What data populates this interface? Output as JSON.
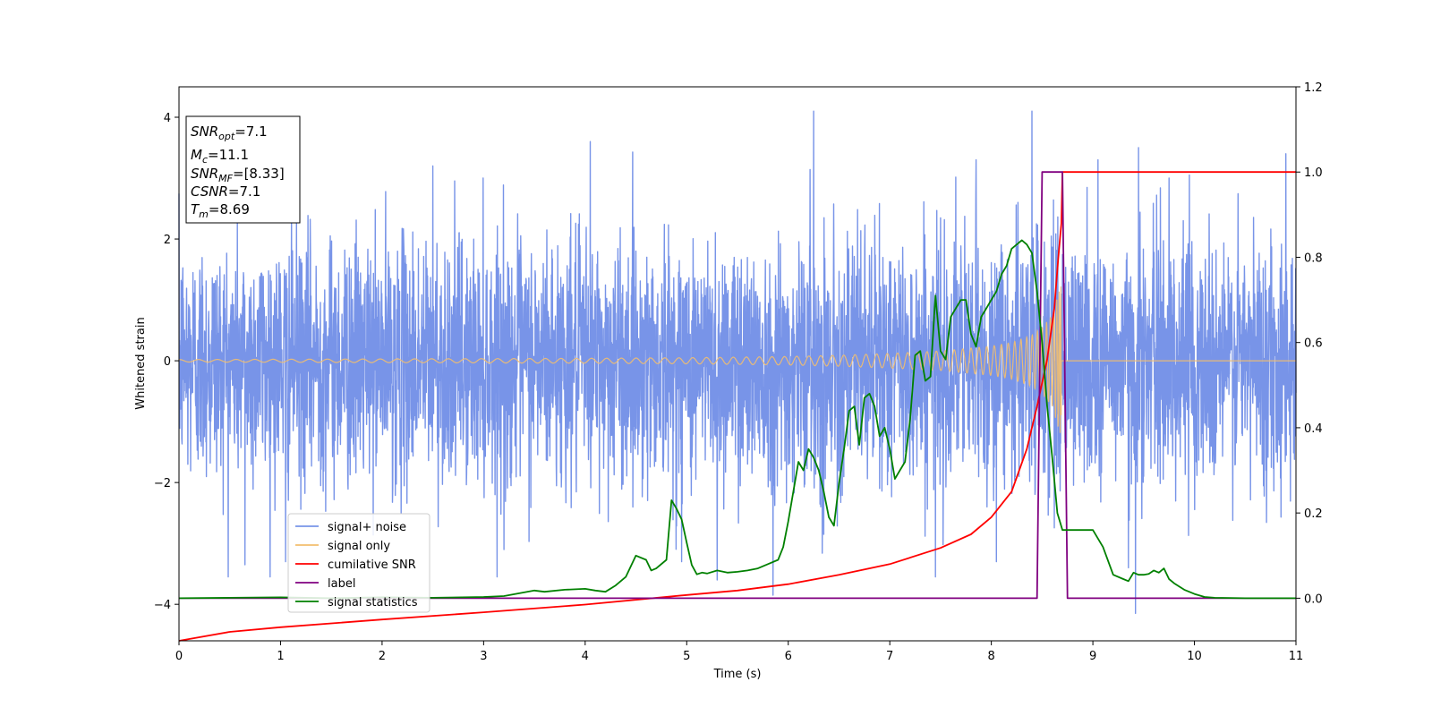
{
  "chart_data": {
    "type": "line",
    "xlabel": "Time (s)",
    "ylabel": "Whitened strain",
    "xlim": [
      0,
      11
    ],
    "ylim": [
      -4.6,
      4.5
    ],
    "y2lim": [
      -0.1,
      1.2
    ],
    "x_ticks": [
      "0",
      "1",
      "2",
      "3",
      "4",
      "5",
      "6",
      "7",
      "8",
      "9",
      "10",
      "11"
    ],
    "y_ticks": [
      "4",
      "2",
      "0",
      "−2",
      "−4"
    ],
    "y2_ticks": [
      "1.2",
      "1.0",
      "0.8",
      "0.6",
      "0.4",
      "0.2",
      "0.0"
    ],
    "grid": false,
    "legend_position": "lower-left",
    "info_box": {
      "snr_opt": {
        "base": "SNR",
        "sub": "opt",
        "value": "=7.1"
      },
      "mc": {
        "base": "M",
        "sub": "c",
        "value": "=11.1"
      },
      "snr_mf": {
        "base": "SNR",
        "sub": "MF",
        "value": "=[8.33]"
      },
      "csnr": {
        "base": "CSNR",
        "sub": "",
        "value": "=7.1"
      },
      "tm": {
        "base": "T",
        "sub": "m",
        "value": "=8.69"
      }
    },
    "series": [
      {
        "name": "signal+ noise",
        "axis": "left",
        "color": "#7894e8",
        "description_stats": {
          "mean": 0,
          "typical_amplitude": 1.8,
          "max": 4.1,
          "min": -4.15
        },
        "peaks": [
          [
            0.65,
            -3.35
          ],
          [
            1.05,
            -3.3
          ],
          [
            2.5,
            3.2
          ],
          [
            3.2,
            -3.1
          ],
          [
            4.05,
            3.6
          ],
          [
            4.95,
            -3.3
          ],
          [
            5.3,
            -3.6
          ],
          [
            5.85,
            -3.85
          ],
          [
            6.25,
            4.1
          ],
          [
            6.35,
            -2.85
          ],
          [
            7.45,
            -3.55
          ],
          [
            7.85,
            3.3
          ],
          [
            8.05,
            -3.3
          ],
          [
            8.4,
            4.1
          ],
          [
            9.05,
            3.3
          ],
          [
            9.35,
            -3.4
          ],
          [
            9.42,
            -4.15
          ],
          [
            9.45,
            3.5
          ],
          [
            9.75,
            3.0
          ],
          [
            9.95,
            3.05
          ],
          [
            10.9,
            3.4
          ]
        ]
      },
      {
        "name": "signal only",
        "axis": "left",
        "color": "#f2be6e",
        "envelope_x": [
          0,
          2,
          4,
          5,
          6,
          6.5,
          7,
          7.5,
          8,
          8.2,
          8.4,
          8.5,
          8.6,
          8.65,
          8.69,
          8.7,
          11
        ],
        "envelope_y": [
          0.02,
          0.03,
          0.04,
          0.05,
          0.07,
          0.09,
          0.12,
          0.16,
          0.24,
          0.3,
          0.42,
          0.55,
          0.75,
          1.05,
          1.25,
          0,
          0
        ]
      },
      {
        "name": "cumilative SNR",
        "axis": "right",
        "color": "#ff0000",
        "x": [
          0,
          0.5,
          1,
          2,
          3,
          4,
          5,
          5.5,
          6,
          6.5,
          7,
          7.5,
          7.8,
          8,
          8.2,
          8.35,
          8.45,
          8.55,
          8.62,
          8.66,
          8.69,
          8.7,
          11
        ],
        "values": [
          -0.1,
          -0.079,
          -0.068,
          -0.05,
          -0.033,
          -0.015,
          0.0075,
          0.018,
          0.033,
          0.055,
          0.08,
          0.118,
          0.15,
          0.19,
          0.25,
          0.35,
          0.45,
          0.56,
          0.68,
          0.8,
          0.88,
          1.0,
          1.0
        ]
      },
      {
        "name": "label",
        "axis": "right",
        "color": "#800080",
        "x": [
          0,
          8.45,
          8.5,
          8.7,
          8.75,
          11
        ],
        "values": [
          0,
          0,
          1,
          1,
          0,
          0
        ]
      },
      {
        "name": "signal statistics",
        "axis": "right",
        "color": "#008000",
        "x": [
          0,
          0.5,
          1,
          1.5,
          2,
          2.5,
          3,
          3.2,
          3.5,
          3.6,
          3.8,
          4,
          4.1,
          4.2,
          4.3,
          4.4,
          4.5,
          4.6,
          4.65,
          4.7,
          4.8,
          4.85,
          4.9,
          4.95,
          5.0,
          5.05,
          5.1,
          5.15,
          5.2,
          5.3,
          5.4,
          5.5,
          5.6,
          5.7,
          5.8,
          5.9,
          5.95,
          6.0,
          6.05,
          6.1,
          6.15,
          6.2,
          6.25,
          6.3,
          6.35,
          6.4,
          6.45,
          6.5,
          6.55,
          6.6,
          6.65,
          6.7,
          6.75,
          6.8,
          6.85,
          6.9,
          6.95,
          7.0,
          7.05,
          7.1,
          7.15,
          7.2,
          7.25,
          7.3,
          7.35,
          7.4,
          7.45,
          7.5,
          7.55,
          7.6,
          7.65,
          7.7,
          7.75,
          7.8,
          7.85,
          7.9,
          7.95,
          8.0,
          8.05,
          8.1,
          8.15,
          8.2,
          8.25,
          8.3,
          8.35,
          8.4,
          8.45,
          8.5,
          8.55,
          8.6,
          8.65,
          8.7,
          8.75,
          8.8,
          8.9,
          9.0,
          9.1,
          9.2,
          9.3,
          9.35,
          9.4,
          9.45,
          9.5,
          9.55,
          9.6,
          9.65,
          9.7,
          9.75,
          9.8,
          9.9,
          10.0,
          10.1,
          10.2,
          10.5,
          11
        ],
        "values": [
          0,
          0.001,
          0.002,
          0.0,
          0.002,
          0.001,
          0.003,
          0.005,
          0.018,
          0.015,
          0.02,
          0.022,
          0.018,
          0.015,
          0.03,
          0.05,
          0.1,
          0.09,
          0.065,
          0.07,
          0.09,
          0.23,
          0.21,
          0.185,
          0.13,
          0.078,
          0.056,
          0.06,
          0.058,
          0.065,
          0.06,
          0.062,
          0.065,
          0.07,
          0.08,
          0.09,
          0.12,
          0.18,
          0.25,
          0.32,
          0.3,
          0.35,
          0.33,
          0.3,
          0.25,
          0.19,
          0.17,
          0.27,
          0.35,
          0.44,
          0.45,
          0.36,
          0.47,
          0.48,
          0.45,
          0.38,
          0.4,
          0.35,
          0.28,
          0.3,
          0.32,
          0.42,
          0.57,
          0.58,
          0.51,
          0.52,
          0.71,
          0.58,
          0.56,
          0.66,
          0.68,
          0.7,
          0.7,
          0.62,
          0.59,
          0.66,
          0.68,
          0.7,
          0.72,
          0.76,
          0.78,
          0.82,
          0.83,
          0.84,
          0.83,
          0.81,
          0.72,
          0.6,
          0.45,
          0.33,
          0.2,
          0.16,
          0.16,
          0.16,
          0.16,
          0.16,
          0.12,
          0.055,
          0.045,
          0.04,
          0.06,
          0.055,
          0.055,
          0.057,
          0.065,
          0.06,
          0.07,
          0.045,
          0.035,
          0.02,
          0.01,
          0.003,
          0.001,
          0.0,
          0.0
        ]
      }
    ]
  }
}
